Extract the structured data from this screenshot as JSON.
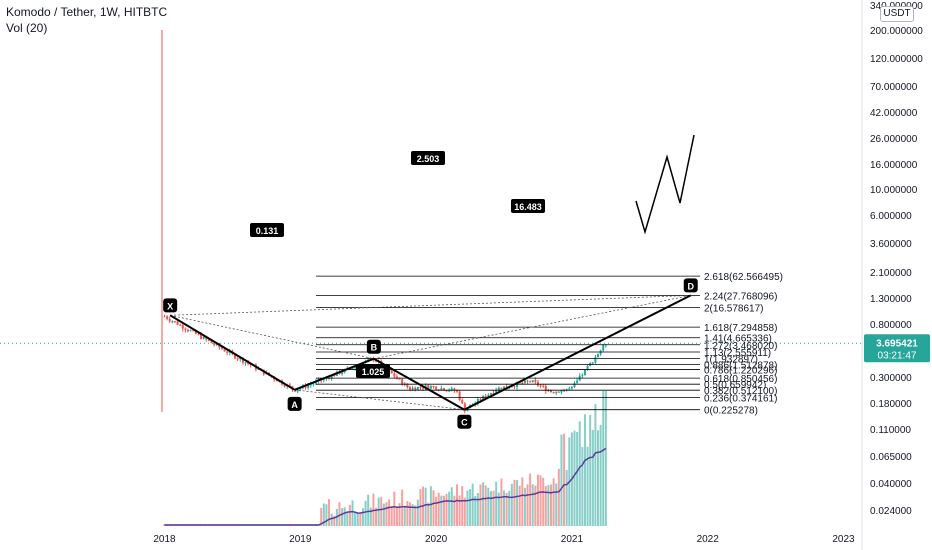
{
  "header": {
    "title": "Komodo / Tether, 1W, HITBTC",
    "volume_label": "Vol (20)",
    "currency_button": "USDT"
  },
  "price_badge": {
    "price": "3.695421",
    "countdown": "03:21:47",
    "color": "#26a69a"
  },
  "colors": {
    "up": "#26a69a",
    "down": "#ef5350",
    "pattern_line": "#000000",
    "fib_line": "#000000",
    "volume_ma": "#5b3c99",
    "grid_text": "#131722"
  },
  "chart_data": {
    "type": "candlestick",
    "y_scale": "log",
    "price_axis_ticks": [
      "340.000000",
      "200.000000",
      "120.000000",
      "70.000000",
      "42.000000",
      "26.000000",
      "16.000000",
      "10.000000",
      "6.000000",
      "3.600000",
      "2.100000",
      "1.300000",
      "0.800000",
      "0.500000",
      "0.300000",
      "0.180000",
      "0.110000",
      "0.065000",
      "0.040000",
      "0.024000"
    ],
    "time_axis_ticks": [
      "2018",
      "2019",
      "2020",
      "2021",
      "2022",
      "2023"
    ],
    "harmonic_points": [
      {
        "label": "X",
        "date": "2018-01",
        "price": 12.0
      },
      {
        "label": "A",
        "date": "2018-12",
        "price": 0.52
      },
      {
        "label": "B",
        "date": "2019-07",
        "price": 1.93
      },
      {
        "label": "C",
        "date": "2020-03",
        "price": 0.225
      },
      {
        "label": "D",
        "date": "2021-11",
        "price": 27.77
      }
    ],
    "ratio_labels": [
      "0.131",
      "2.503",
      "16.483",
      "1.025"
    ],
    "fib_levels": [
      {
        "label": "2.618(62.566495)",
        "price": 62.566495
      },
      {
        "label": "2.24(27.768096)",
        "price": 27.768096
      },
      {
        "label": "2(16.578617)",
        "price": 16.578617
      },
      {
        "label": "1.618(7.294858)",
        "price": 7.294858
      },
      {
        "label": "1.41(4.665336)",
        "price": 4.665336
      },
      {
        "label": "1.272(3.468020)",
        "price": 3.46802
      },
      {
        "label": "1.13(2.555911)",
        "price": 2.555911
      },
      {
        "label": "1(1.932897)",
        "price": 1.932897
      },
      {
        "label": "0.886(1.512878)",
        "price": 1.512878
      },
      {
        "label": "0.786(1.220296)",
        "price": 1.220296
      },
      {
        "label": "0.618(0.850456)",
        "price": 0.850456
      },
      {
        "label": "0.5(0.659942)",
        "price": 0.659942
      },
      {
        "label": "0.382(0.512100)",
        "price": 0.5121
      },
      {
        "label": "0.236(0.374161)",
        "price": 0.374161
      },
      {
        "label": "0(0.225278)",
        "price": 0.225278
      }
    ],
    "current_price": 3.695421
  }
}
